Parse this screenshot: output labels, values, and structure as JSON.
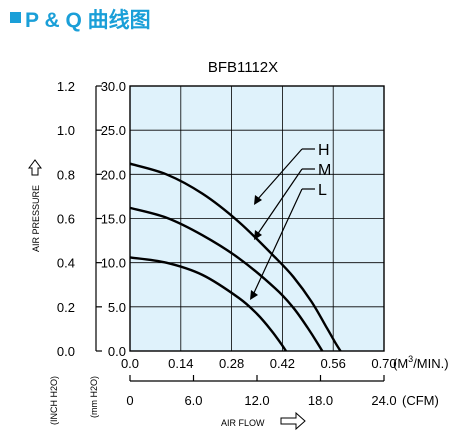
{
  "header": {
    "title": "P & Q 曲线图",
    "accent_color": "#1a9fd8"
  },
  "chart_data": {
    "type": "line",
    "title": "BFB1112X",
    "x_cmm_ticks": [
      "0.0",
      "0.14",
      "0.28",
      "0.42",
      "0.56",
      "0.70"
    ],
    "x_cmm_unit_prefix": "(M",
    "x_cmm_unit_exp": "3",
    "x_cmm_unit_suffix": "/MIN.)",
    "x_cfm_ticks": [
      "0",
      "6.0",
      "12.0",
      "18.0",
      "24.0"
    ],
    "x_cfm_unit": "(CFM)",
    "x_label": "AIR FLOW",
    "y_inch_ticks": [
      "0.0",
      "0.2",
      "0.4",
      "0.6",
      "0.8",
      "1.0",
      "1.2"
    ],
    "y_mm_ticks": [
      "0.0",
      "5.0",
      "10.0",
      "15.0",
      "20.0",
      "25.0",
      "30.0"
    ],
    "y_label": "AIR PRESSURE",
    "y_inch_unit": "(INCH H2O)",
    "y_mm_unit": "(mm H2O)",
    "xlim": [
      0,
      0.7
    ],
    "ylim": [
      0,
      30
    ],
    "grid": true,
    "plot_bg": "#dff2fb",
    "series": [
      {
        "name": "H",
        "x": [
          0,
          0.1,
          0.2,
          0.3,
          0.4,
          0.45,
          0.5,
          0.54,
          0.565,
          0.58
        ],
        "y": [
          21.2,
          20.0,
          17.8,
          14.6,
          10.6,
          8.4,
          5.6,
          2.8,
          1.0,
          0.0
        ]
      },
      {
        "name": "M",
        "x": [
          0,
          0.1,
          0.2,
          0.3,
          0.4,
          0.45,
          0.49,
          0.515,
          0.53
        ],
        "y": [
          16.2,
          15.1,
          13.1,
          10.5,
          7.1,
          4.9,
          2.6,
          1.0,
          0.0
        ]
      },
      {
        "name": "L",
        "x": [
          0,
          0.1,
          0.2,
          0.3,
          0.35,
          0.39,
          0.415,
          0.43
        ],
        "y": [
          10.6,
          10.0,
          8.6,
          6.0,
          4.2,
          2.3,
          0.9,
          0.0
        ]
      }
    ]
  }
}
